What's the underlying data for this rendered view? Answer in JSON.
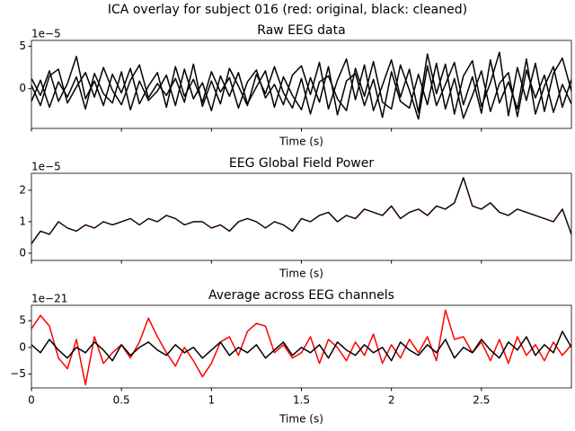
{
  "title": "ICA overlay for subject 016 (red: original, black: cleaned)",
  "chart_data": [
    {
      "type": "line",
      "title": "Raw EEG data",
      "xlabel": "Time (s)",
      "offset_text": "1e−5",
      "x": [
        0,
        0.05,
        0.1,
        0.15,
        0.2,
        0.25,
        0.3,
        0.35,
        0.4,
        0.45,
        0.5,
        0.55,
        0.6,
        0.65,
        0.7,
        0.75,
        0.8,
        0.85,
        0.9,
        0.95,
        1,
        1.05,
        1.1,
        1.15,
        1.2,
        1.25,
        1.3,
        1.35,
        1.4,
        1.45,
        1.5,
        1.55,
        1.6,
        1.65,
        1.7,
        1.75,
        1.8,
        1.85,
        1.9,
        1.95,
        2,
        2.05,
        2.1,
        2.15,
        2.2,
        2.25,
        2.3,
        2.35,
        2.4,
        2.45,
        2.5,
        2.55,
        2.6,
        2.65,
        2.7,
        2.75,
        2.8,
        2.85,
        2.9,
        2.95,
        3
      ],
      "xlim": [
        0,
        3.0
      ],
      "xticks": [
        0,
        0.5,
        1.0,
        1.5,
        2.0,
        2.5
      ],
      "xtick_labels": false,
      "ylim": [
        -4.7,
        5.7
      ],
      "yticks": [
        0,
        5
      ],
      "series": [
        {
          "color": "#000000",
          "values": [
            1.2,
            -0.8,
            2.1,
            -1.5,
            0.6,
            3.8,
            -1.2,
            0.9,
            -2.0,
            1.7,
            -0.5,
            2.4,
            -1.8,
            0.3,
            1.9,
            -2.2,
            2.6,
            -0.9,
            1.1,
            -1.6,
            2.0,
            -0.4,
            1.3,
            -2.3,
            0.8,
            2.2,
            -1.1,
            0.5,
            -1.9,
            1.6,
            2.7,
            -0.7,
            3.1,
            -2.4,
            1.0,
            3.5,
            -1.3,
            2.8,
            -2.6,
            0.4,
            3.4,
            -1.0,
            2.3,
            -2.8,
            4.1,
            -0.6,
            2.9,
            -3.0,
            1.5,
            3.3,
            -2.1,
            0.7,
            4.3,
            -3.2,
            2.5,
            -1.4,
            3.0,
            -2.7,
            1.8,
            3.6,
            -0.3
          ]
        },
        {
          "color": "#000000",
          "values": [
            -1.5,
            1.0,
            -2.2,
            0.8,
            -1.0,
            1.4,
            -2.4,
            1.8,
            -0.6,
            -1.7,
            2.0,
            -2.5,
            0.9,
            -1.4,
            -0.3,
            1.6,
            -2.0,
            2.3,
            -1.2,
            0.7,
            -2.6,
            1.5,
            -0.9,
            1.9,
            -1.8,
            0.2,
            2.1,
            -2.2,
            1.4,
            -0.8,
            -2.5,
            1.3,
            -1.6,
            2.6,
            -3.1,
            0.9,
            1.8,
            -2.0,
            1.1,
            -3.4,
            2.0,
            -1.5,
            -2.3,
            1.7,
            -1.9,
            3.0,
            -2.4,
            1.2,
            -3.5,
            -0.8,
            2.1,
            -2.7,
            0.6,
            1.9,
            -3.3,
            2.2,
            -1.1,
            1.6,
            -2.8,
            0.5,
            -1.8
          ]
        },
        {
          "color": "#000000",
          "values": [
            0.4,
            -2.0,
            1.5,
            2.3,
            -1.7,
            0.2,
            1.9,
            -1.0,
            2.5,
            -0.2,
            -1.9,
            1.0,
            2.8,
            -1.1,
            0.6,
            -0.8,
            1.2,
            -1.6,
            2.9,
            -2.1,
            0.9,
            -1.8,
            2.4,
            0.3,
            -2.0,
            1.7,
            -0.6,
            2.6,
            -0.5,
            -2.3,
            1.2,
            -3.0,
            0.8,
            1.5,
            -1.2,
            -2.6,
            2.4,
            -0.9,
            3.2,
            -1.6,
            -2.4,
            2.8,
            -0.2,
            -3.6,
            2.7,
            -2.0,
            0.5,
            3.1,
            -1.9,
            1.4,
            -2.9,
            3.4,
            -1.7,
            0.8,
            -2.4,
            3.5,
            -3.0,
            0.3,
            2.6,
            -2.2,
            1.1
          ]
        }
      ]
    },
    {
      "type": "line",
      "title": "EEG Global Field Power",
      "xlabel": "Time (s)",
      "offset_text": "1e−5",
      "x": [
        0,
        0.05,
        0.1,
        0.15,
        0.2,
        0.25,
        0.3,
        0.35,
        0.4,
        0.45,
        0.5,
        0.55,
        0.6,
        0.65,
        0.7,
        0.75,
        0.8,
        0.85,
        0.9,
        0.95,
        1,
        1.05,
        1.1,
        1.15,
        1.2,
        1.25,
        1.3,
        1.35,
        1.4,
        1.45,
        1.5,
        1.55,
        1.6,
        1.65,
        1.7,
        1.75,
        1.8,
        1.85,
        1.9,
        1.95,
        2,
        2.05,
        2.1,
        2.15,
        2.2,
        2.25,
        2.3,
        2.35,
        2.4,
        2.45,
        2.5,
        2.55,
        2.6,
        2.65,
        2.7,
        2.75,
        2.8,
        2.85,
        2.9,
        2.95,
        3
      ],
      "xlim": [
        0,
        3.0
      ],
      "xticks": [
        0,
        0.5,
        1.0,
        1.5,
        2.0,
        2.5
      ],
      "xtick_labels": false,
      "ylim": [
        -0.23,
        2.54
      ],
      "yticks": [
        0,
        1,
        2
      ],
      "series": [
        {
          "color": "#1a0000",
          "values": [
            0.3,
            0.7,
            0.6,
            1.0,
            0.8,
            0.7,
            0.9,
            0.8,
            1.0,
            0.9,
            1.0,
            1.1,
            0.9,
            1.1,
            1.0,
            1.2,
            1.1,
            0.9,
            1.0,
            1.0,
            0.8,
            0.9,
            0.7,
            1.0,
            1.1,
            1.0,
            0.8,
            1.0,
            0.9,
            0.7,
            1.1,
            1.0,
            1.2,
            1.3,
            1.0,
            1.2,
            1.1,
            1.4,
            1.3,
            1.2,
            1.5,
            1.1,
            1.3,
            1.4,
            1.2,
            1.5,
            1.4,
            1.6,
            2.4,
            1.5,
            1.4,
            1.6,
            1.3,
            1.2,
            1.4,
            1.3,
            1.2,
            1.1,
            1.0,
            1.4,
            0.6
          ]
        }
      ]
    },
    {
      "type": "line",
      "title": "Average across EEG channels",
      "xlabel": "Time (s)",
      "offset_text": "1e−21",
      "x": [
        0,
        0.05,
        0.1,
        0.15,
        0.2,
        0.25,
        0.3,
        0.35,
        0.4,
        0.45,
        0.5,
        0.55,
        0.6,
        0.65,
        0.7,
        0.75,
        0.8,
        0.85,
        0.9,
        0.95,
        1,
        1.05,
        1.1,
        1.15,
        1.2,
        1.25,
        1.3,
        1.35,
        1.4,
        1.45,
        1.5,
        1.55,
        1.6,
        1.65,
        1.7,
        1.75,
        1.8,
        1.85,
        1.9,
        1.95,
        2,
        2.05,
        2.1,
        2.15,
        2.2,
        2.25,
        2.3,
        2.35,
        2.4,
        2.45,
        2.5,
        2.55,
        2.6,
        2.65,
        2.7,
        2.75,
        2.8,
        2.85,
        2.9,
        2.95,
        3
      ],
      "xlim": [
        0,
        3.0
      ],
      "xticks": [
        0,
        0.5,
        1.0,
        1.5,
        2.0,
        2.5
      ],
      "xtick_labels": true,
      "ylim": [
        -7.6,
        7.9
      ],
      "yticks": [
        {
          "value": -5,
          "label": "−5"
        },
        0,
        5
      ],
      "series": [
        {
          "color": "#ff0000",
          "values": [
            3.5,
            6.0,
            4.0,
            -2.0,
            -4.0,
            1.5,
            -7.0,
            2.0,
            -3.0,
            -1.0,
            0.5,
            -2.0,
            1.0,
            5.5,
            2.0,
            -1.0,
            -3.5,
            0.0,
            -2.5,
            -5.5,
            -3.0,
            1.0,
            2.0,
            -1.5,
            3.0,
            4.5,
            4.0,
            -1.0,
            0.5,
            -2.0,
            -1.0,
            2.0,
            -3.0,
            1.5,
            0.0,
            -2.5,
            1.0,
            -1.5,
            2.5,
            -3.0,
            0.5,
            -2.0,
            1.5,
            -1.0,
            2.0,
            -2.5,
            7.0,
            1.5,
            2.0,
            -1.0,
            1.0,
            -2.5,
            1.5,
            -3.0,
            2.0,
            -1.5,
            0.5,
            -2.5,
            1.0,
            -1.5,
            0.5
          ]
        },
        {
          "color": "#000000",
          "values": [
            0.5,
            -1.0,
            1.5,
            -0.5,
            -2.0,
            0.0,
            -1.0,
            1.0,
            -0.5,
            -2.5,
            0.5,
            -1.5,
            0.0,
            1.0,
            -0.5,
            -1.5,
            0.5,
            -1.0,
            0.0,
            -2.0,
            -0.5,
            1.0,
            -1.5,
            0.0,
            -1.0,
            0.5,
            -2.0,
            -0.5,
            1.0,
            -1.5,
            0.0,
            -1.0,
            0.5,
            -2.0,
            1.0,
            -0.5,
            -1.5,
            0.5,
            -1.0,
            0.0,
            -2.5,
            1.0,
            -0.5,
            -1.5,
            0.5,
            -1.0,
            1.5,
            -2.0,
            0.0,
            -1.0,
            1.5,
            -0.5,
            -2.0,
            1.0,
            -0.5,
            2.0,
            -1.5,
            0.5,
            -1.0,
            3.0,
            0.0
          ]
        }
      ]
    }
  ]
}
